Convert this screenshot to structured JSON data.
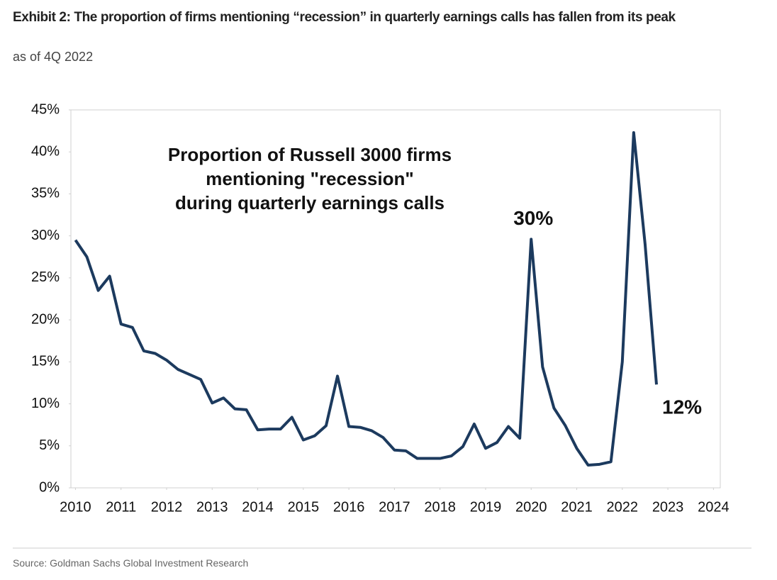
{
  "chart_data": {
    "type": "line",
    "title": "Exhibit 2: The proportion of firms mentioning “recession” in quarterly earnings calls has fallen from its peak",
    "subtitle": "as of 4Q 2022",
    "annotation": [
      "Proportion of Russell 3000 firms",
      "mentioning \"recession\"",
      "during quarterly earnings calls"
    ],
    "source": "Source: Goldman Sachs Global Investment Research",
    "color": "#1c3a5e",
    "x": [
      2010,
      2010.25,
      2010.5,
      2010.75,
      2011,
      2011.25,
      2011.5,
      2011.75,
      2012,
      2012.25,
      2012.5,
      2012.75,
      2013,
      2013.25,
      2013.5,
      2013.75,
      2014,
      2014.25,
      2014.5,
      2014.75,
      2015,
      2015.25,
      2015.5,
      2015.75,
      2016,
      2016.25,
      2016.5,
      2016.75,
      2017,
      2017.25,
      2017.5,
      2017.75,
      2018,
      2018.25,
      2018.5,
      2018.75,
      2019,
      2019.25,
      2019.5,
      2019.75,
      2020,
      2020.25,
      2020.5,
      2020.75,
      2021,
      2021.25,
      2021.5,
      2021.75,
      2022,
      2022.25,
      2022.5,
      2022.75
    ],
    "values": [
      29.5,
      27.5,
      23.5,
      25.2,
      19.5,
      19.1,
      16.3,
      16.0,
      15.2,
      14.1,
      13.5,
      12.9,
      10.1,
      10.7,
      9.4,
      9.3,
      6.9,
      7.0,
      7.0,
      8.4,
      5.7,
      6.2,
      7.4,
      13.3,
      7.3,
      7.2,
      6.8,
      6.0,
      4.5,
      4.4,
      3.5,
      3.5,
      3.5,
      3.8,
      4.9,
      7.6,
      4.7,
      5.4,
      7.3,
      5.9,
      29.6,
      14.4,
      9.5,
      7.4,
      4.7,
      2.7,
      2.8,
      3.1,
      15.0,
      42.3,
      29.0,
      12.3
    ],
    "value_labels": [
      null,
      null,
      null,
      null,
      null,
      null,
      null,
      null,
      null,
      null,
      null,
      null,
      null,
      null,
      null,
      null,
      null,
      null,
      null,
      null,
      null,
      null,
      null,
      null,
      null,
      null,
      null,
      null,
      null,
      null,
      null,
      null,
      null,
      null,
      null,
      null,
      null,
      null,
      null,
      null,
      "30%",
      null,
      null,
      null,
      null,
      null,
      null,
      null,
      null,
      null,
      null,
      "12%"
    ],
    "xlim": [
      2009.9,
      2024.15
    ],
    "xticks": [
      2010,
      2011,
      2012,
      2013,
      2014,
      2015,
      2016,
      2017,
      2018,
      2019,
      2020,
      2021,
      2022,
      2023,
      2024
    ],
    "ylim": [
      0,
      45
    ],
    "yticks": [
      {
        "value": 0,
        "label": "0%"
      },
      {
        "value": 5,
        "label": "5%"
      },
      {
        "value": 10,
        "label": "10%"
      },
      {
        "value": 15,
        "label": "15%"
      },
      {
        "value": 20,
        "label": "20%"
      },
      {
        "value": 25,
        "label": "25%"
      },
      {
        "value": 30,
        "label": "30%"
      },
      {
        "value": 35,
        "label": "35%"
      },
      {
        "value": 40,
        "label": "40%"
      },
      {
        "value": 45,
        "label": "45%"
      }
    ]
  }
}
